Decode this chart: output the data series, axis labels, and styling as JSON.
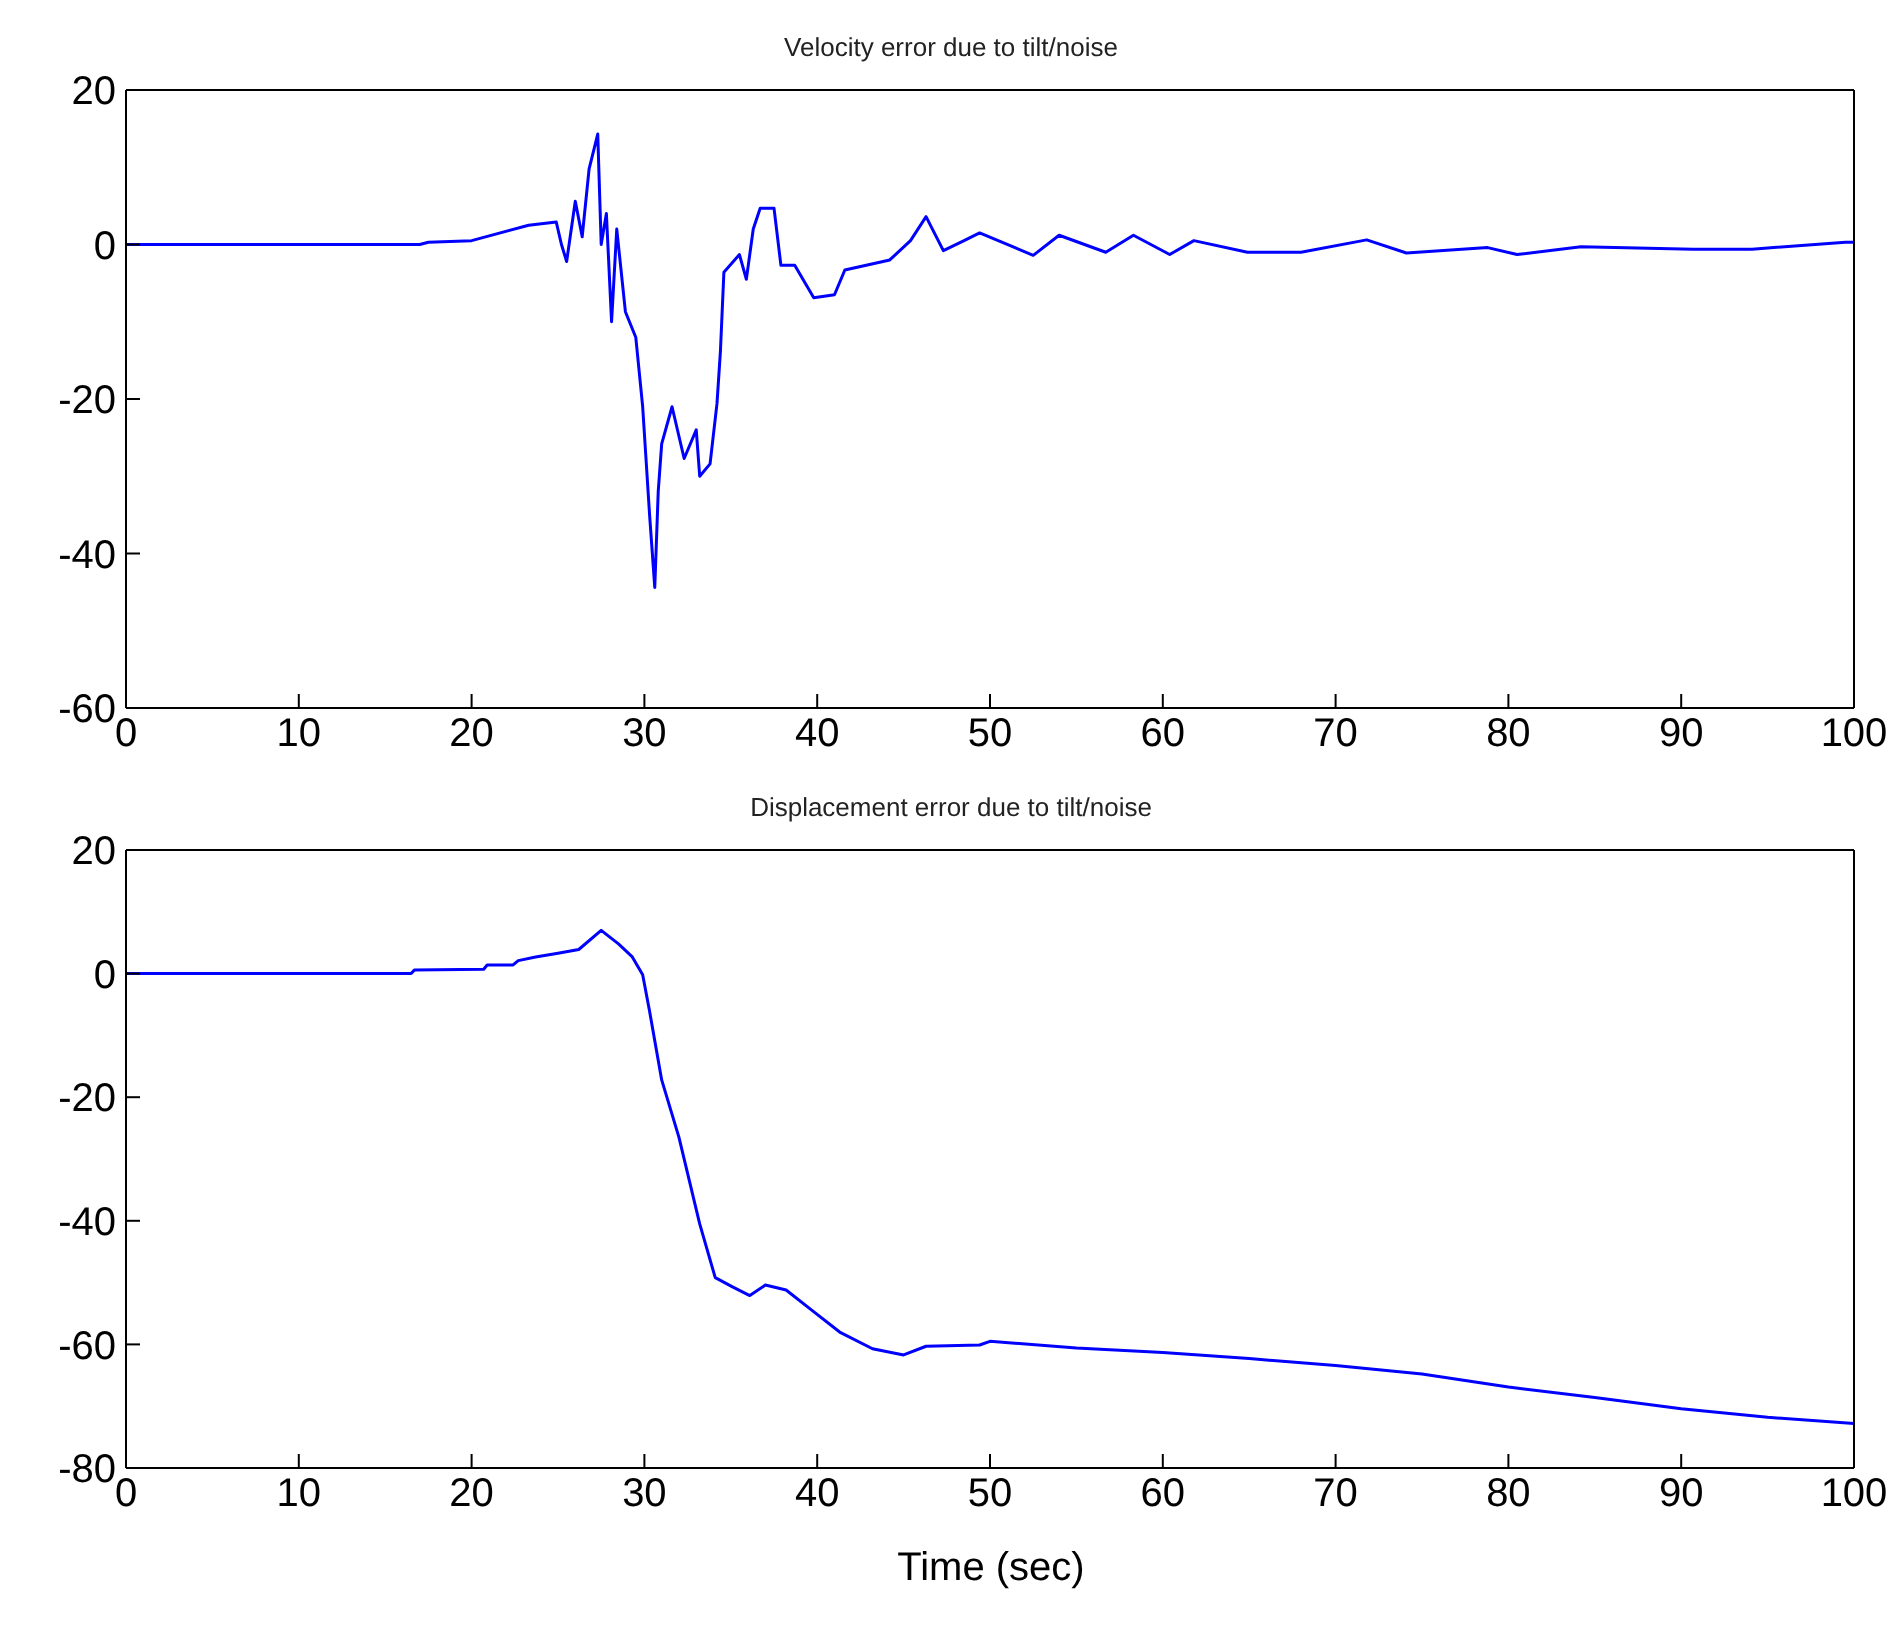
{
  "chart_data": [
    {
      "type": "line",
      "title": "Velocity error due to tilt/noise",
      "xlim": [
        0,
        100
      ],
      "xticks": [
        0,
        10,
        20,
        30,
        40,
        50,
        60,
        70,
        80,
        90,
        100
      ],
      "ylim": [
        -60,
        20
      ],
      "yticks": [
        -60,
        -40,
        -20,
        0,
        20
      ],
      "series": [
        {
          "color": "#0000ff",
          "x": [
            0,
            17,
            17.5,
            20,
            23.3,
            24.9,
            25.2,
            25.5,
            26,
            26.4,
            26.8,
            27.3,
            27.5,
            27.8,
            28.1,
            28.4,
            28.9,
            29.5,
            29.9,
            30.3,
            30.6,
            30.8,
            31.0,
            31.6,
            32.3,
            33.0,
            33.2,
            33.8,
            34.2,
            34.4,
            34.6,
            35.5,
            35.9,
            36.3,
            36.7,
            37.5,
            37.9,
            38.7,
            39.8,
            41.0,
            41.6,
            44.2,
            45.4,
            46.3,
            47.3,
            48.5,
            49.4,
            52.5,
            54.0,
            56.7,
            58.3,
            60.4,
            61.8,
            64.9,
            68.0,
            71.8,
            74.1,
            78.8,
            80.5,
            84.2,
            90.7,
            94.1,
            99.5,
            100
          ],
          "values": [
            0,
            0,
            0.3,
            0.5,
            2.5,
            2.9,
            0,
            -2.2,
            5.6,
            1,
            9.8,
            14.3,
            0,
            4,
            -10,
            2,
            -8.7,
            -12,
            -21,
            -35,
            -44.4,
            -32,
            -25.8,
            -21,
            -27.7,
            -24,
            -30,
            -28.4,
            -20.6,
            -13.8,
            -3.6,
            -1.3,
            -4.5,
            2,
            4.7,
            4.7,
            -2.7,
            -2.7,
            -6.9,
            -6.5,
            -3.3,
            -2,
            0.5,
            3.6,
            -0.8,
            0.5,
            1.5,
            -1.4,
            1.2,
            -1,
            1.2,
            -1.3,
            0.5,
            -1,
            -1,
            0.6,
            -1.1,
            -0.4,
            -1.3,
            -0.3,
            -0.6,
            -0.6,
            0.3,
            0.3
          ]
        }
      ]
    },
    {
      "type": "line",
      "title": "Displacement error due to tilt/noise",
      "xlabel": "Time (sec)",
      "xlim": [
        0,
        100
      ],
      "xticks": [
        0,
        10,
        20,
        30,
        40,
        50,
        60,
        70,
        80,
        90,
        100
      ],
      "ylim": [
        -80,
        20
      ],
      "yticks": [
        -80,
        -60,
        -40,
        -20,
        0,
        20
      ],
      "series": [
        {
          "color": "#0000ff",
          "x": [
            0,
            16.5,
            16.7,
            20.7,
            20.9,
            22.4,
            22.7,
            23.7,
            25.0,
            26.2,
            27.5,
            28.5,
            29.3,
            29.9,
            30.3,
            31.0,
            32.0,
            33.2,
            34.1,
            35.1,
            36.1,
            37.0,
            38.2,
            39.7,
            41.3,
            43.2,
            45.0,
            46.3,
            49.4,
            50,
            55,
            60,
            65,
            70,
            75,
            80,
            85,
            90,
            95,
            100
          ],
          "values": [
            0,
            0,
            0.6,
            0.7,
            1.4,
            1.4,
            2.1,
            2.7,
            3.3,
            3.9,
            7.0,
            4.8,
            2.7,
            -0.2,
            -6.1,
            -17.2,
            -26.5,
            -40.5,
            -49.2,
            -50.7,
            -52.1,
            -50.4,
            -51.2,
            -54.5,
            -58,
            -60.7,
            -61.7,
            -60.3,
            -60.1,
            -59.5,
            -60.6,
            -61.3,
            -62.3,
            -63.4,
            -64.8,
            -66.9,
            -68.6,
            -70.4,
            -71.8,
            -72.8
          ]
        }
      ]
    }
  ]
}
